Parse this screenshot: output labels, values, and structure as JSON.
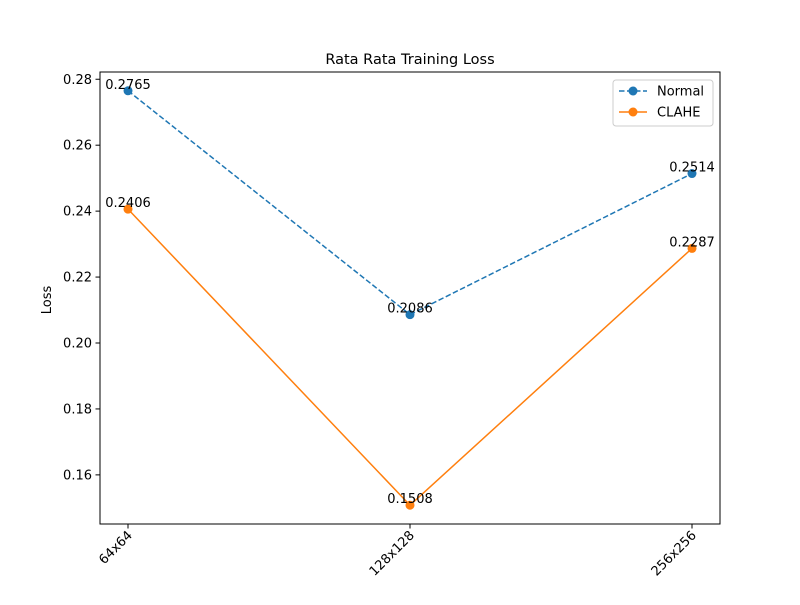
{
  "chart_data": {
    "type": "line",
    "title": "Rata Rata Training Loss",
    "xlabel": "",
    "ylabel": "Loss",
    "categories": [
      "64x64",
      "128x128",
      "256x256"
    ],
    "ylim": [
      0.1451,
      0.2822
    ],
    "yticks": [
      "0.16",
      "0.18",
      "0.20",
      "0.22",
      "0.24",
      "0.26",
      "0.28"
    ],
    "ytick_values": [
      0.16,
      0.18,
      0.2,
      0.22,
      0.24,
      0.26,
      0.28
    ],
    "grid": false,
    "legend_position": "top-right",
    "series": [
      {
        "name": "Normal",
        "values": [
          0.2765,
          0.2086,
          0.2514
        ],
        "labels": [
          "0.2765",
          "0.2086",
          "0.2514"
        ],
        "color": "#1f77b4",
        "linestyle": "dashed",
        "marker": "circle"
      },
      {
        "name": "CLAHE",
        "values": [
          0.2406,
          0.1508,
          0.2287
        ],
        "labels": [
          "0.2406",
          "0.1508",
          "0.2287"
        ],
        "color": "#ff7f0e",
        "linestyle": "solid",
        "marker": "circle"
      }
    ]
  }
}
